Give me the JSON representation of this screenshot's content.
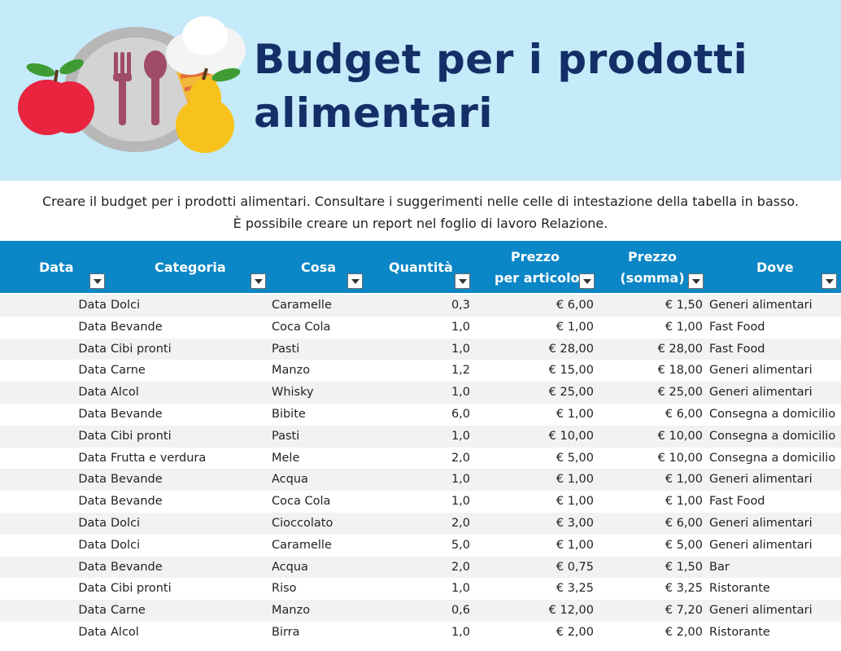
{
  "banner": {
    "title_line1": "Budget per i prodotti",
    "title_line2": "alimentari"
  },
  "intro": {
    "line1": "Creare il budget per i prodotti alimentari. Consultare i suggerimenti nelle celle di intestazione della tabella in basso.",
    "line2": "È possibile creare un report nel foglio di lavoro Relazione."
  },
  "table": {
    "headers": {
      "data": "Data",
      "categoria": "Categoria",
      "cosa": "Cosa",
      "quantita": "Quantità",
      "prezzo_articolo_1": "Prezzo",
      "prezzo_articolo_2": "per articolo",
      "prezzo_somma_1": "Prezzo",
      "prezzo_somma_2": "(somma)",
      "dove": "Dove"
    },
    "rows": [
      {
        "data": "Data",
        "categoria": "Dolci",
        "cosa": "Caramelle",
        "quantita": "0,3",
        "prezzo": "€ 6,00",
        "somma": "€ 1,50",
        "dove": "Generi alimentari"
      },
      {
        "data": "Data",
        "categoria": "Bevande",
        "cosa": "Coca Cola",
        "quantita": "1,0",
        "prezzo": "€ 1,00",
        "somma": "€ 1,00",
        "dove": "Fast Food"
      },
      {
        "data": "Data",
        "categoria": "Cibi pronti",
        "cosa": "Pasti",
        "quantita": "1,0",
        "prezzo": "€ 28,00",
        "somma": "€ 28,00",
        "dove": "Fast Food"
      },
      {
        "data": "Data",
        "categoria": "Carne",
        "cosa": "Manzo",
        "quantita": "1,2",
        "prezzo": "€ 15,00",
        "somma": "€ 18,00",
        "dove": "Generi alimentari"
      },
      {
        "data": "Data",
        "categoria": "Alcol",
        "cosa": "Whisky",
        "quantita": "1,0",
        "prezzo": "€ 25,00",
        "somma": "€ 25,00",
        "dove": "Generi alimentari"
      },
      {
        "data": "Data",
        "categoria": "Bevande",
        "cosa": "Bibite",
        "quantita": "6,0",
        "prezzo": "€ 1,00",
        "somma": "€ 6,00",
        "dove": "Consegna a domicilio"
      },
      {
        "data": "Data",
        "categoria": "Cibi pronti",
        "cosa": "Pasti",
        "quantita": "1,0",
        "prezzo": "€ 10,00",
        "somma": "€ 10,00",
        "dove": "Consegna a domicilio"
      },
      {
        "data": "Data",
        "categoria": "Frutta e verdura",
        "cosa": "Mele",
        "quantita": "2,0",
        "prezzo": "€ 5,00",
        "somma": "€ 10,00",
        "dove": "Consegna a domicilio"
      },
      {
        "data": "Data",
        "categoria": "Bevande",
        "cosa": "Acqua",
        "quantita": "1,0",
        "prezzo": "€ 1,00",
        "somma": "€ 1,00",
        "dove": "Generi alimentari"
      },
      {
        "data": "Data",
        "categoria": "Bevande",
        "cosa": "Coca Cola",
        "quantita": "1,0",
        "prezzo": "€ 1,00",
        "somma": "€ 1,00",
        "dove": "Fast Food"
      },
      {
        "data": "Data",
        "categoria": "Dolci",
        "cosa": "Cioccolato",
        "quantita": "2,0",
        "prezzo": "€ 3,00",
        "somma": "€ 6,00",
        "dove": "Generi alimentari"
      },
      {
        "data": "Data",
        "categoria": "Dolci",
        "cosa": "Caramelle",
        "quantita": "5,0",
        "prezzo": "€ 1,00",
        "somma": "€ 5,00",
        "dove": "Generi alimentari"
      },
      {
        "data": "Data",
        "categoria": "Bevande",
        "cosa": "Acqua",
        "quantita": "2,0",
        "prezzo": "€ 0,75",
        "somma": "€ 1,50",
        "dove": "Bar"
      },
      {
        "data": "Data",
        "categoria": "Cibi pronti",
        "cosa": "Riso",
        "quantita": "1,0",
        "prezzo": "€ 3,25",
        "somma": "€ 3,25",
        "dove": "Ristorante"
      },
      {
        "data": "Data",
        "categoria": "Carne",
        "cosa": "Manzo",
        "quantita": "0,6",
        "prezzo": "€ 12,00",
        "somma": "€ 7,20",
        "dove": "Generi alimentari"
      },
      {
        "data": "Data",
        "categoria": "Alcol",
        "cosa": "Birra",
        "quantita": "1,0",
        "prezzo": "€ 2,00",
        "somma": "€ 2,00",
        "dove": "Ristorante"
      }
    ]
  },
  "colors": {
    "banner_bg": "#c5eaf9",
    "title": "#123067",
    "header_bg": "#0b86c6",
    "row_alt": "#f2f2f2"
  },
  "icons": [
    "plate-icon",
    "fork-icon",
    "spoon-icon",
    "apple-icon",
    "pear-icon",
    "ice-cream-icon",
    "filter-dropdown-icon"
  ]
}
